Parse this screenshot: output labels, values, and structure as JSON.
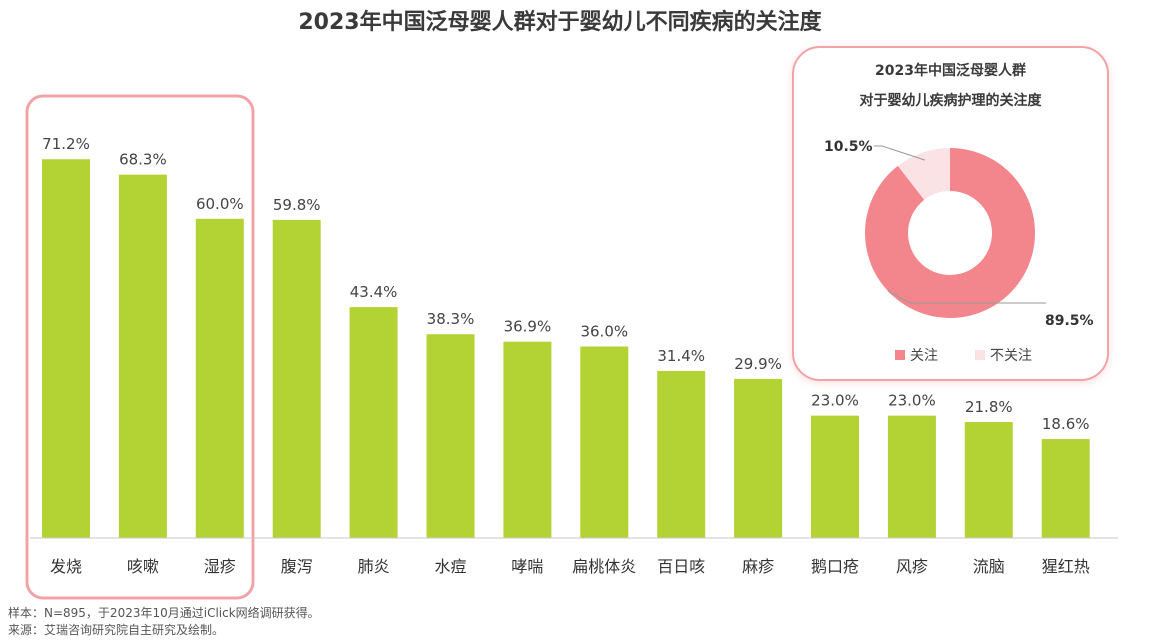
{
  "title": "2023年中国泛母婴人群对于婴幼儿不同疾病的关注度",
  "chart_data": [
    {
      "type": "bar",
      "categories": [
        "发烧",
        "咳嗽",
        "湿疹",
        "腹泻",
        "肺炎",
        "水痘",
        "哮喘",
        "扁桃体炎",
        "百日咳",
        "麻疹",
        "鹅口疮",
        "风疹",
        "流脑",
        "猩红热"
      ],
      "values": [
        71.2,
        68.3,
        60.0,
        59.8,
        43.4,
        38.3,
        36.9,
        36.0,
        31.4,
        29.9,
        23.0,
        23.0,
        21.8,
        18.6
      ],
      "value_labels": [
        "71.2%",
        "68.3%",
        "60.0%",
        "59.8%",
        "43.4%",
        "38.3%",
        "36.9%",
        "36.0%",
        "31.4%",
        "29.9%",
        "23.0%",
        "23.0%",
        "21.8%",
        "18.6%"
      ],
      "unit": "%",
      "highlighted_categories": [
        "发烧",
        "咳嗽",
        "湿疹"
      ],
      "bar_color": "#b3d234",
      "highlight_border_color": "#f2a3a8",
      "ylim": [
        0,
        80
      ],
      "grid": false
    },
    {
      "type": "pie",
      "title_lines": [
        "2023年中国泛母婴人群",
        "对于婴幼儿疾病护理的关注度"
      ],
      "labels": [
        "关注",
        "不关注"
      ],
      "values": [
        89.5,
        10.5
      ],
      "value_labels": [
        "89.5%",
        "10.5%"
      ],
      "colors": [
        "#f2868c",
        "#fbe3e5"
      ],
      "legend_position": "bottom"
    }
  ],
  "footnotes": [
    "样本：N=895，于2023年10月通过iClick网络调研获得。",
    "来源：艾瑞咨询研究院自主研究及绘制。"
  ]
}
